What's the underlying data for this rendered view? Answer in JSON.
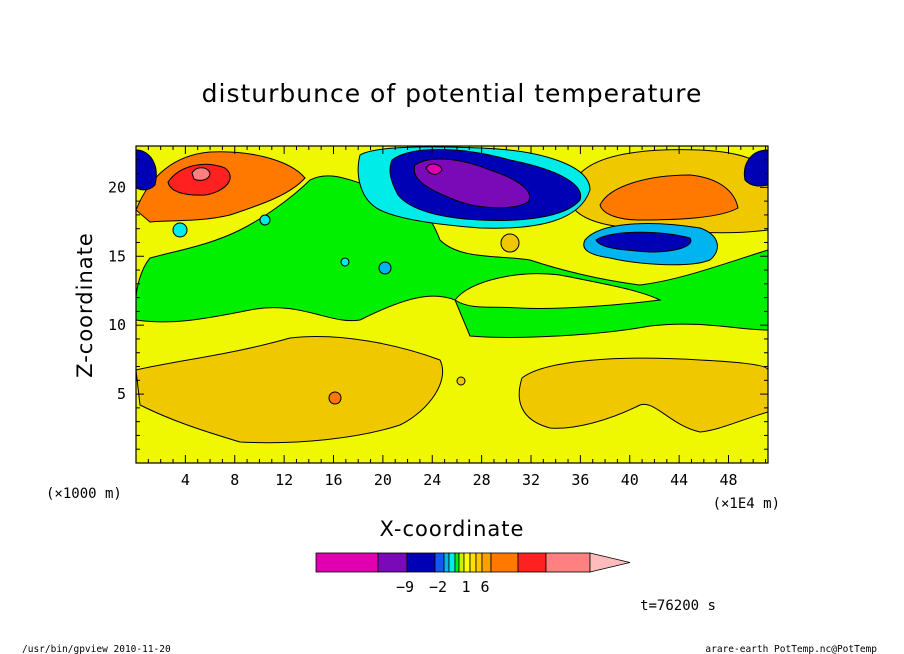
{
  "chart_data": {
    "type": "heatmap",
    "title": "disturbunce of potential temperature",
    "xlabel": "X-coordinate",
    "ylabel": "Z-coordinate",
    "x_unit_left": "(×1000 m)",
    "x_unit_right": "(×1E4 m)",
    "xlim": [
      0,
      51.2
    ],
    "ylim": [
      0,
      23
    ],
    "x_ticks": [
      4,
      8,
      12,
      16,
      20,
      24,
      28,
      32,
      36,
      40,
      44,
      48
    ],
    "y_ticks": [
      5,
      10,
      15,
      20
    ],
    "colorbar": {
      "labels": [
        {
          "value": -9,
          "text": "−9"
        },
        {
          "value": -2,
          "text": "−2"
        },
        {
          "value": 1,
          "text": "1"
        },
        {
          "value": 6,
          "text": "6"
        }
      ],
      "colors": [
        "#e000b0",
        "#7a0ab8",
        "#0000b4",
        "#1458f0",
        "#00b4f0",
        "#00ece8",
        "#00f000",
        "#c8f000",
        "#ffff00",
        "#ffe000",
        "#ffc800",
        "#ffa000",
        "#ff7800",
        "#ff2020",
        "#ff8080",
        "#ffbcbc"
      ]
    },
    "time_label": "t=76200 s",
    "background_level": "#f0f800",
    "features": [
      {
        "kind": "band",
        "color": "#00f000",
        "note": "mid-level band around z≈11-17"
      },
      {
        "kind": "blob",
        "color": "#f0c800",
        "note": "lower maxima near z≈5"
      },
      {
        "kind": "blob",
        "color": "#7a0ab8",
        "note": "upper minimum near x≈28, z≈20"
      },
      {
        "kind": "blob",
        "color": "#ff7800",
        "note": "upper maxima near x≈6 and x≈44"
      }
    ]
  },
  "footer": {
    "left": "/usr/bin/gpview   2010-11-20",
    "right": "arare-earth_PotTemp.nc@PotTemp"
  }
}
